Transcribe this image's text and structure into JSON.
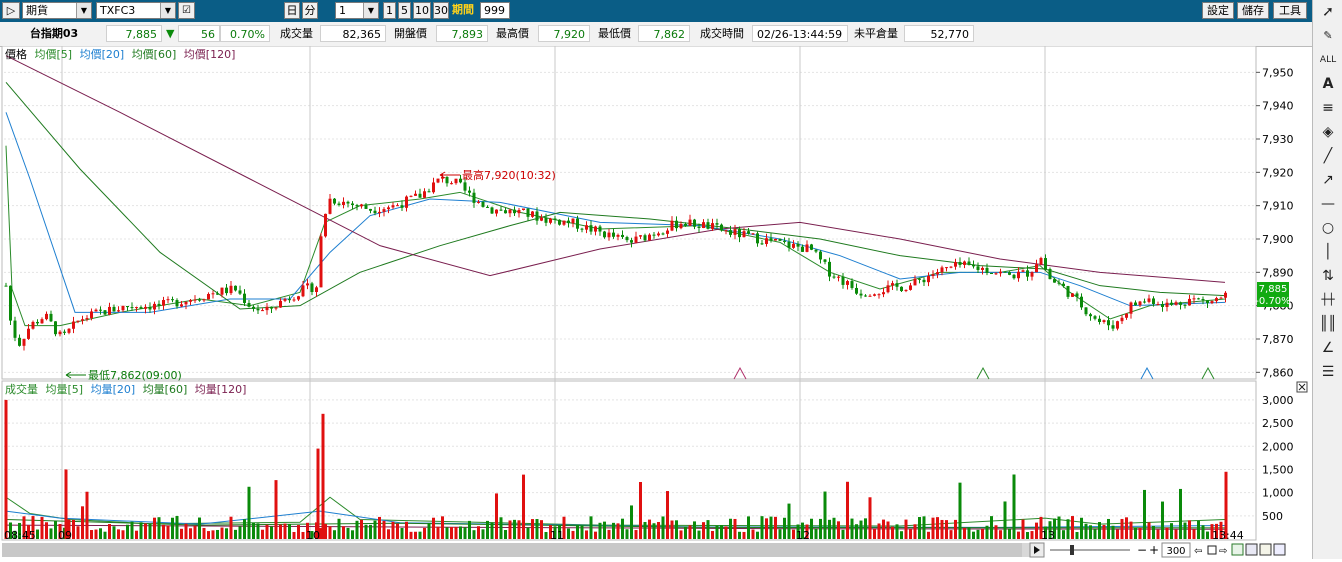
{
  "toolbar": {
    "market": "期貨",
    "symbol": "TXFC3",
    "day_btn": "日",
    "min_btn": "分",
    "interval": "1",
    "interval_opts": [
      "1",
      "5",
      "10",
      "30"
    ],
    "period_label": "期間",
    "period_value": "999",
    "settings": "設定",
    "save": "儲存",
    "tools": "工具"
  },
  "quote": {
    "name": "台指期03",
    "price": "7,885",
    "change_arrow": "▼",
    "change": "56",
    "change_pct": "0.70%",
    "vol_label": "成交量",
    "vol": "82,365",
    "open_label": "開盤價",
    "open": "7,893",
    "high_label": "最高價",
    "high": "7,920",
    "low_label": "最低價",
    "low": "7,862",
    "time_label": "成交時間",
    "time": "02/26-13:44:59",
    "oi_label": "未平倉量",
    "oi": "52,770"
  },
  "price_panel": {
    "legend": [
      {
        "label": "價格",
        "color": "#000000"
      },
      {
        "label": "均價[5]",
        "color": "#2a8a2a"
      },
      {
        "label": "均價[20]",
        "color": "#1e7fd0"
      },
      {
        "label": "均價[60]",
        "color": "#1f7a1f"
      },
      {
        "label": "均價[120]",
        "color": "#7a1f4f"
      }
    ],
    "high_marker": "最高7,920(10:32)",
    "low_marker": "最低7,862(09:00)",
    "current_price": "7,885",
    "current_pct": "-0.70%",
    "y_ticks": [
      "7,950",
      "7,940",
      "7,930",
      "7,920",
      "7,910",
      "7,900",
      "7,890",
      "7,880",
      "7,870",
      "7,860"
    ]
  },
  "volume_panel": {
    "legend": [
      {
        "label": "成交量",
        "color": "#2a8a2a"
      },
      {
        "label": "均量[5]",
        "color": "#2a8a2a"
      },
      {
        "label": "均量[20]",
        "color": "#1e7fd0"
      },
      {
        "label": "均量[60]",
        "color": "#1f7a1f"
      },
      {
        "label": "均量[120]",
        "color": "#7a1f4f"
      }
    ],
    "y_ticks": [
      "3,000",
      "2,500",
      "2,000",
      "1,500",
      "1,000",
      "500"
    ]
  },
  "x_axis": {
    "labels": [
      "08:45",
      "09",
      "10",
      "11",
      "12",
      "13",
      "13:44"
    ]
  },
  "bottom": {
    "zoom_value": "300"
  },
  "colors": {
    "up": "#e01010",
    "down": "#0a8a0a",
    "bg_top": "#0a5d86",
    "ma5": "#2a8a2a",
    "ma20": "#1e7fd0",
    "ma60": "#1f7a1f",
    "ma120": "#7a1f4f"
  },
  "icons": [
    "pointer-icon",
    "eraser-icon",
    "erase-all-icon",
    "text-icon",
    "hlines-icon",
    "fill-icon",
    "line-icon",
    "arrow-icon",
    "hline-icon",
    "circle-icon",
    "vline-icon",
    "updown-icon",
    "grid-icon",
    "bars-icon",
    "fan-icon",
    "fib-icon"
  ]
}
